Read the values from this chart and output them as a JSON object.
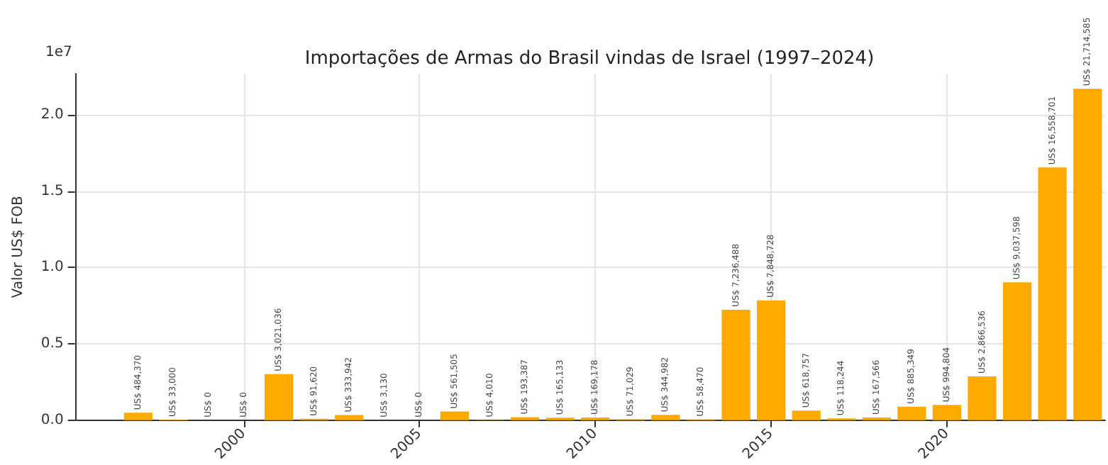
{
  "chart_data": {
    "type": "bar",
    "title": "Importações de Armas do Brasil vindas de Israel (1997–2024)",
    "ylabel": "Valor US$ FOB",
    "x": [
      1997,
      1998,
      1999,
      2000,
      2001,
      2002,
      2003,
      2004,
      2005,
      2006,
      2007,
      2008,
      2009,
      2010,
      2011,
      2012,
      2013,
      2014,
      2015,
      2016,
      2017,
      2018,
      2019,
      2020,
      2021,
      2022,
      2023,
      2024
    ],
    "values": [
      0.048437,
      0.0033,
      0,
      0,
      0.3021036,
      0.009162,
      0.0333942,
      0.000313,
      0,
      0.0561505,
      0.000401,
      0.0193387,
      0.0165133,
      0.0169178,
      0.0071029,
      0.0344982,
      0.005847,
      0.7236488,
      0.7848728,
      0.0618757,
      0.0118244,
      0.0167566,
      0.0885349,
      0.0994804,
      0.2866536,
      0.9037598,
      1.6558701,
      2.1714585
    ],
    "value_labels": [
      "US$ 484,370",
      "US$ 33,000",
      "US$ 0",
      "US$ 0",
      "US$ 3,021,036",
      "US$ 91,620",
      "US$ 333,942",
      "US$ 3,130",
      "US$ 0",
      "US$ 561,505",
      "US$ 4,010",
      "US$ 193,387",
      "US$ 165,133",
      "US$ 169,178",
      "US$ 71,029",
      "US$ 344,982",
      "US$ 58,470",
      "US$ 7,236,488",
      "US$ 7,848,728",
      "US$ 618,757",
      "US$ 118,244",
      "US$ 167,566",
      "US$ 885,349",
      "US$ 994,804",
      "US$ 2,866,536",
      "US$ 9,037,598",
      "US$ 16,558,701",
      "US$ 21,714,585"
    ],
    "color": "#ffaa00",
    "xlim": [
      1995.2,
      2024.5
    ],
    "xticks": [
      2000,
      2005,
      2010,
      2015,
      2020
    ],
    "ylim": [
      0,
      2.27
    ],
    "yticks": [
      {
        "value": 0,
        "label": "0.0"
      },
      0.5,
      {
        "value": 1,
        "label": "1.0"
      },
      1.5,
      {
        "value": 2,
        "label": "2.0"
      }
    ],
    "annotations": [
      "1e7"
    ],
    "grid": true
  }
}
